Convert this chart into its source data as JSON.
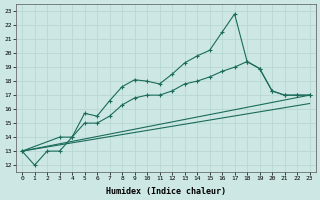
{
  "xlabel": "Humidex (Indice chaleur)",
  "xlim": [
    -0.5,
    23.5
  ],
  "ylim": [
    11.5,
    23.5
  ],
  "xticks": [
    0,
    1,
    2,
    3,
    4,
    5,
    6,
    7,
    8,
    9,
    10,
    11,
    12,
    13,
    14,
    15,
    16,
    17,
    18,
    19,
    20,
    21,
    22,
    23
  ],
  "yticks": [
    12,
    13,
    14,
    15,
    16,
    17,
    18,
    19,
    20,
    21,
    22,
    23
  ],
  "bg_color": "#cde8e4",
  "line_color": "#1a6b5a",
  "grid_color": "#b8d8d4",
  "line1_x": [
    0,
    1,
    2,
    3,
    4,
    5,
    6,
    7,
    8,
    9,
    10,
    11,
    12,
    13,
    14,
    15,
    16,
    17,
    18,
    19,
    20,
    21,
    22,
    23
  ],
  "line1_y": [
    13.0,
    12.0,
    13.0,
    13.0,
    14.0,
    15.7,
    15.5,
    16.6,
    17.6,
    18.1,
    18.0,
    17.8,
    18.5,
    19.3,
    19.8,
    20.2,
    21.5,
    22.8,
    19.4,
    18.9,
    17.3,
    17.0,
    17.0,
    17.0
  ],
  "line2_x": [
    0,
    3,
    4,
    5,
    6,
    7,
    8,
    9,
    10,
    11,
    12,
    13,
    14,
    15,
    16,
    17,
    18,
    19,
    20,
    21,
    22,
    23
  ],
  "line2_y": [
    13.0,
    14.0,
    14.0,
    15.0,
    15.0,
    15.5,
    16.3,
    16.8,
    17.0,
    17.0,
    17.3,
    17.8,
    18.0,
    18.3,
    18.7,
    19.0,
    19.4,
    18.9,
    17.3,
    17.0,
    17.0,
    17.0
  ],
  "line3_x": [
    0,
    23
  ],
  "line3_y": [
    13.0,
    17.0
  ],
  "line4_x": [
    0,
    23
  ],
  "line4_y": [
    13.0,
    16.4
  ]
}
